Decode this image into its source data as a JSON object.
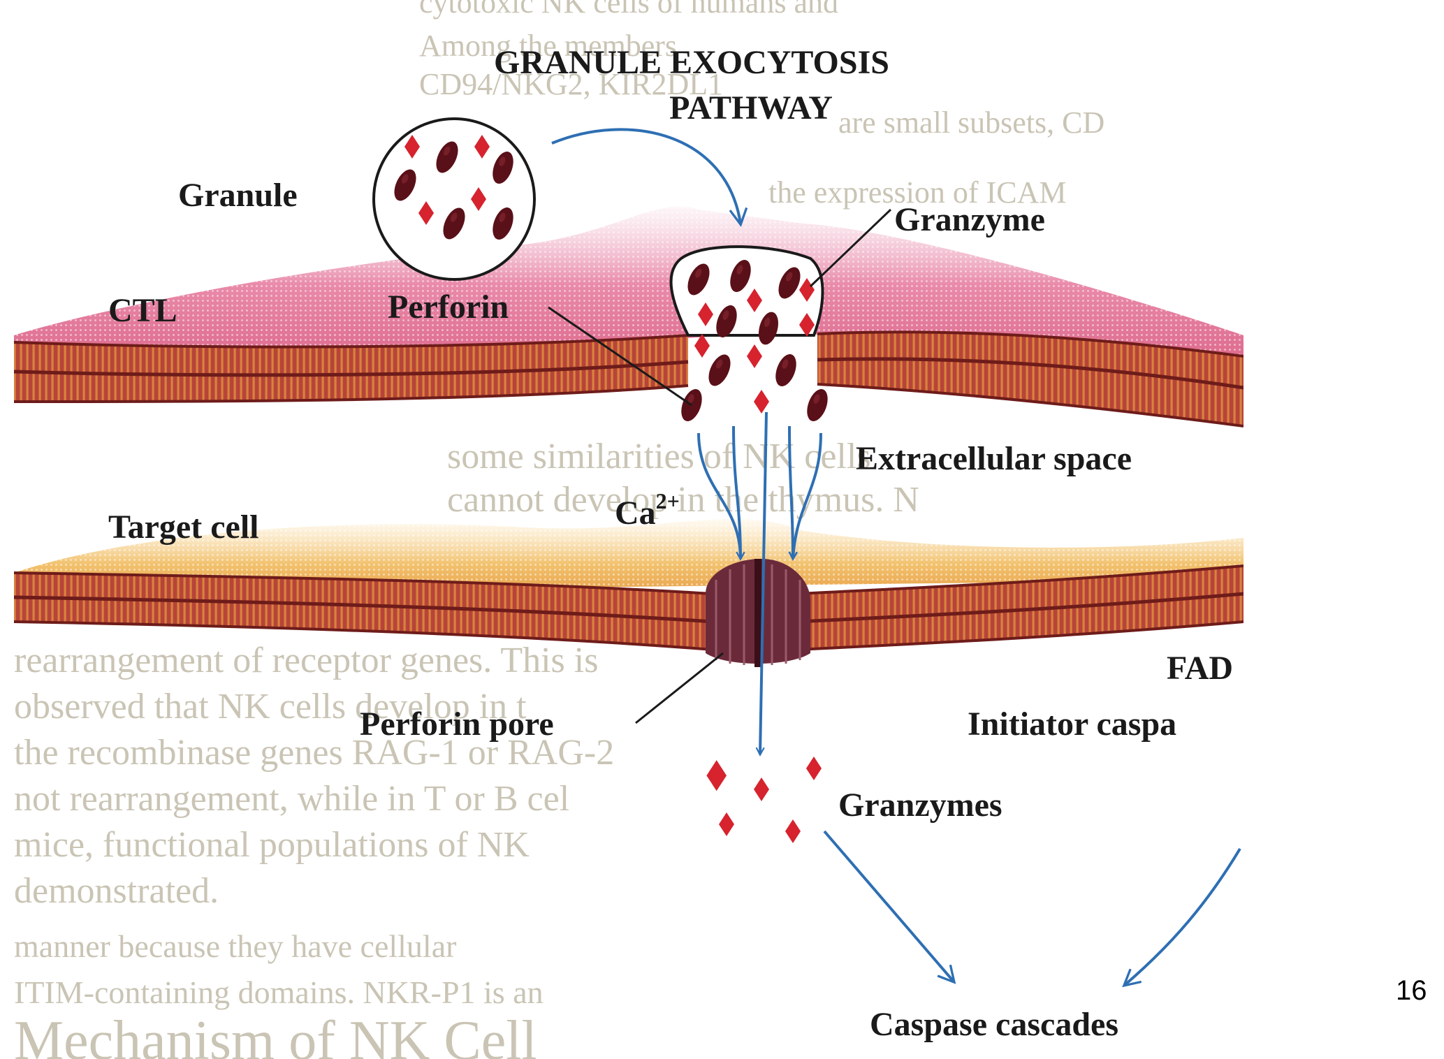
{
  "title": {
    "line1": "GRANULE EXOCYTOSIS",
    "line2": "PATHWAY"
  },
  "labels": {
    "granule": "Granule",
    "granzyme": "Granzyme",
    "ctl": "CTL",
    "perforin": "Perforin",
    "extracellular_space": "Extracellular space",
    "ca_base": "Ca",
    "ca_charge": "2+",
    "target_cell": "Target cell",
    "fadd_partial": "FAD",
    "initiator_caspase_partial": "Initiator caspa",
    "perforin_pore": "Perforin pore",
    "granzymes": "Granzymes",
    "caspase_cascades": "Caspase cascades"
  },
  "background_text": [
    "cytotoxic NK cells of humans and",
    "Among the members",
    "CD94/NKG2, KIR2DL1",
    "are small subsets, CD",
    "the expression of ICAM",
    "some similarities of NK cells",
    "cannot develop in the thymus. N",
    "rearrangement of receptor genes. This is",
    "observed that NK cells develop in t",
    "the recombinase genes RAG-1 or RAG-2",
    "not rearrangement, while in T or B cel",
    "mice, functional populations of NK",
    "demonstrated.",
    "manner because they have cellular",
    "ITIM-containing domains. NKR-P1 is an",
    "Mechanism of NK Cell"
  ],
  "colors": {
    "membrane": "#b5433c",
    "membrane_dark": "#6e1c1a",
    "ctl_fill": "#e57ea0",
    "target_fill": "#f0b85a",
    "granzyme": "#d6232e",
    "perforin": "#5a1018",
    "arrow": "#2e6fb3",
    "pore": "#6b2a3a"
  },
  "page_number": "16"
}
